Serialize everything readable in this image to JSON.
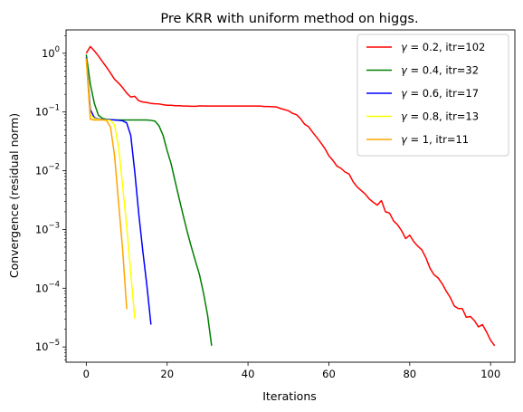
{
  "chart_data": {
    "type": "line",
    "title": "Pre KRR with uniform method on higgs.",
    "xlabel": "Iterations",
    "ylabel": "Convergence (residual norm)",
    "y_scale": "log",
    "xlim": [
      -5,
      106
    ],
    "ylim": [
      5.5e-06,
      2.5
    ],
    "x_ticks": [
      0,
      20,
      40,
      60,
      80,
      100
    ],
    "y_ticks": [
      {
        "value": 1.0,
        "base": "10",
        "exp": "0"
      },
      {
        "value": 0.1,
        "base": "10",
        "exp": "−1"
      },
      {
        "value": 0.01,
        "base": "10",
        "exp": "−2"
      },
      {
        "value": 0.001,
        "base": "10",
        "exp": "−3"
      },
      {
        "value": 0.0001,
        "base": "10",
        "exp": "−4"
      },
      {
        "value": 1e-05,
        "base": "10",
        "exp": "−5"
      }
    ],
    "grid": false,
    "legend_position": "top-right",
    "series": [
      {
        "name": "γ = 0.2, itr=102",
        "legend_symbol": "γ",
        "legend_rest": " = 0.2, itr=102",
        "color": "#ff0000",
        "x": [
          0,
          1,
          2,
          3,
          4,
          5,
          6,
          7,
          8,
          9,
          10,
          11,
          12,
          13,
          14,
          15,
          16,
          17,
          18,
          19,
          20,
          21,
          22,
          23,
          24,
          25,
          26,
          27,
          28,
          29,
          30,
          31,
          32,
          33,
          34,
          35,
          36,
          37,
          38,
          39,
          40,
          41,
          42,
          43,
          44,
          45,
          46,
          47,
          48,
          49,
          50,
          51,
          52,
          53,
          54,
          55,
          56,
          57,
          58,
          59,
          60,
          61,
          62,
          63,
          64,
          65,
          66,
          67,
          68,
          69,
          70,
          71,
          72,
          73,
          74,
          75,
          76,
          77,
          78,
          79,
          80,
          81,
          82,
          83,
          84,
          85,
          86,
          87,
          88,
          89,
          90,
          91,
          92,
          93,
          94,
          95,
          96,
          97,
          98,
          99,
          100,
          101
        ],
        "y": [
          1.0,
          1.3,
          1.1,
          0.9,
          0.72,
          0.58,
          0.46,
          0.36,
          0.31,
          0.26,
          0.21,
          0.18,
          0.185,
          0.155,
          0.148,
          0.145,
          0.14,
          0.138,
          0.137,
          0.133,
          0.13,
          0.13,
          0.128,
          0.128,
          0.126,
          0.126,
          0.125,
          0.125,
          0.127,
          0.127,
          0.126,
          0.126,
          0.126,
          0.126,
          0.126,
          0.126,
          0.126,
          0.126,
          0.126,
          0.126,
          0.126,
          0.126,
          0.126,
          0.126,
          0.124,
          0.124,
          0.123,
          0.122,
          0.115,
          0.11,
          0.105,
          0.095,
          0.09,
          0.077,
          0.062,
          0.056,
          0.045,
          0.037,
          0.03,
          0.024,
          0.018,
          0.015,
          0.012,
          0.011,
          0.0095,
          0.0088,
          0.0065,
          0.0053,
          0.0046,
          0.004,
          0.0033,
          0.0029,
          0.0026,
          0.0031,
          0.002,
          0.0019,
          0.0014,
          0.0012,
          0.00095,
          0.0007,
          0.0008,
          0.00062,
          0.00052,
          0.00045,
          0.00033,
          0.00022,
          0.00017,
          0.00015,
          0.00012,
          9e-05,
          7e-05,
          5e-05,
          4.5e-05,
          4.5e-05,
          3.2e-05,
          3.3e-05,
          2.8e-05,
          2.2e-05,
          2.4e-05,
          1.8e-05,
          1.3e-05,
          1.05e-05
        ]
      },
      {
        "name": "γ = 0.4, itr=32",
        "legend_symbol": "γ",
        "legend_rest": " = 0.4, itr=32",
        "color": "#008000",
        "x": [
          0,
          1,
          2,
          3,
          4,
          5,
          6,
          7,
          8,
          9,
          10,
          11,
          12,
          13,
          14,
          15,
          16,
          17,
          18,
          19,
          20,
          21,
          22,
          23,
          24,
          25,
          26,
          27,
          28,
          29,
          30,
          31
        ],
        "y": [
          0.95,
          0.3,
          0.14,
          0.088,
          0.078,
          0.075,
          0.074,
          0.0735,
          0.073,
          0.073,
          0.073,
          0.073,
          0.073,
          0.073,
          0.073,
          0.073,
          0.072,
          0.07,
          0.058,
          0.04,
          0.022,
          0.013,
          0.0065,
          0.0033,
          0.0017,
          0.0009,
          0.0005,
          0.00029,
          0.00017,
          8.2e-05,
          3.5e-05,
          1.05e-05
        ]
      },
      {
        "name": "γ = 0.6, itr=17",
        "legend_symbol": "γ",
        "legend_rest": " = 0.6, itr=17",
        "color": "#0000ff",
        "x": [
          0,
          1,
          2,
          3,
          4,
          5,
          6,
          7,
          8,
          9,
          10,
          11,
          12,
          13,
          14,
          15,
          16
        ],
        "y": [
          0.85,
          0.11,
          0.08,
          0.076,
          0.075,
          0.074,
          0.074,
          0.073,
          0.072,
          0.071,
          0.065,
          0.04,
          0.0095,
          0.0018,
          0.00042,
          0.00011,
          2.4e-05
        ]
      },
      {
        "name": "γ = 0.8, itr=13",
        "legend_symbol": "γ",
        "legend_rest": " = 0.8, itr=13",
        "color": "#ffff00",
        "x": [
          0,
          1,
          2,
          3,
          4,
          5,
          6,
          7,
          8,
          9,
          10,
          11,
          12
        ],
        "y": [
          0.82,
          0.09,
          0.077,
          0.075,
          0.074,
          0.073,
          0.072,
          0.06,
          0.025,
          0.0055,
          0.0011,
          0.00018,
          3e-05
        ]
      },
      {
        "name": "γ = 1, itr=11",
        "legend_symbol": "γ",
        "legend_rest": " = 1, itr=11",
        "color": "#ffa500",
        "x": [
          0,
          1,
          2,
          3,
          4,
          5,
          6,
          7,
          8,
          9,
          10
        ],
        "y": [
          0.8,
          0.075,
          0.073,
          0.073,
          0.073,
          0.072,
          0.055,
          0.018,
          0.0028,
          0.00045,
          4.4e-05
        ]
      }
    ]
  }
}
